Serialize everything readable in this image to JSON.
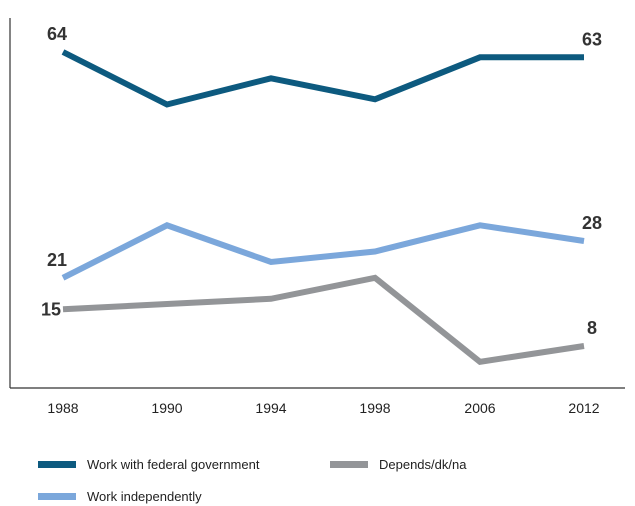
{
  "chart_data": {
    "type": "line",
    "categories": [
      "1988",
      "1990",
      "1994",
      "1998",
      "2006",
      "2012"
    ],
    "ylim": [
      0,
      72
    ],
    "grid": false,
    "legend_placement": "bottom",
    "series": [
      {
        "name": "Work with federal government",
        "color": "#0d5a7f",
        "values": [
          64,
          54,
          59,
          55,
          63,
          63
        ],
        "labels": [
          {
            "index": 0,
            "text": "64",
            "position": "above"
          },
          {
            "index": 5,
            "text": "63",
            "position": "above"
          }
        ]
      },
      {
        "name": "Work independently",
        "color": "#7ba7db",
        "values": [
          21,
          31,
          24,
          26,
          31,
          28
        ],
        "labels": [
          {
            "index": 0,
            "text": "21",
            "position": "above"
          },
          {
            "index": 5,
            "text": "28",
            "position": "above"
          }
        ]
      },
      {
        "name": "Depends/dk/na",
        "color": "#939598",
        "values": [
          15,
          16,
          17,
          21,
          5,
          8
        ],
        "labels": [
          {
            "index": 0,
            "text": "15",
            "position": "left"
          },
          {
            "index": 5,
            "text": "8",
            "position": "above"
          }
        ]
      }
    ],
    "legend_order": [
      0,
      2,
      1
    ]
  }
}
